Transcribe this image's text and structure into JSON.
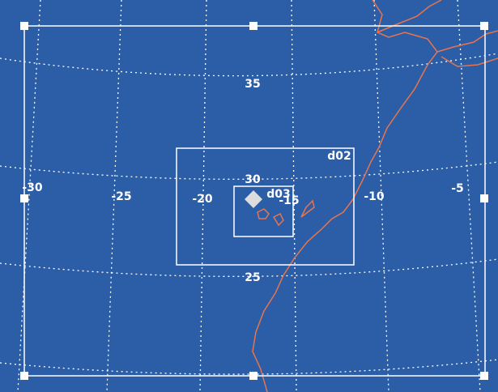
{
  "labels": {
    "latitudes": [
      "35",
      "30",
      "25"
    ],
    "longitudes": [
      "-30",
      "-25",
      "-20",
      "-15",
      "-10",
      "-5"
    ]
  },
  "domains": [
    {
      "label": "d02"
    },
    {
      "label": "d03"
    }
  ]
}
